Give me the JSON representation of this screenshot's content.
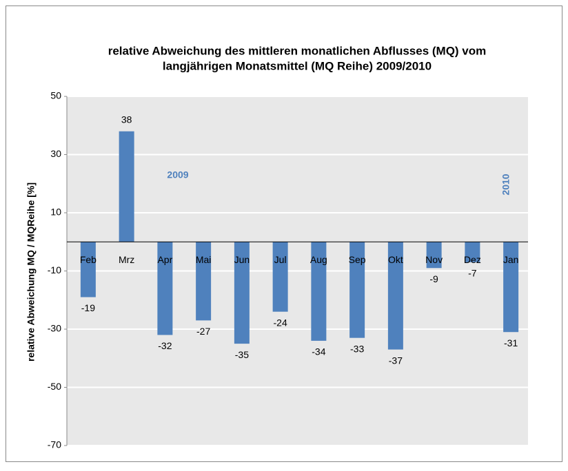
{
  "chart_data": {
    "type": "bar",
    "title": [
      "relative Abweichung des mittleren monatlichen Abflusses (MQ) vom",
      "langjährigen Monatsmittel (MQ Reihe) 2009/2010"
    ],
    "ylabel": "relative Abweichung MQ / MQReihe [%]",
    "categories": [
      "Feb",
      "Mrz",
      "Apr",
      "Mai",
      "Jun",
      "Jul",
      "Aug",
      "Sep",
      "Okt",
      "Nov",
      "Dez",
      "Jan"
    ],
    "values": [
      -19,
      38,
      -32,
      -27,
      -35,
      -24,
      -34,
      -33,
      -37,
      -9,
      -7,
      -31
    ],
    "color": "#4f81bd",
    "ylim": [
      -70,
      50
    ],
    "yticks": [
      50,
      30,
      10,
      -10,
      -30,
      -50,
      -70
    ],
    "grid": true,
    "annotations": [
      "2009",
      "2010"
    ]
  }
}
